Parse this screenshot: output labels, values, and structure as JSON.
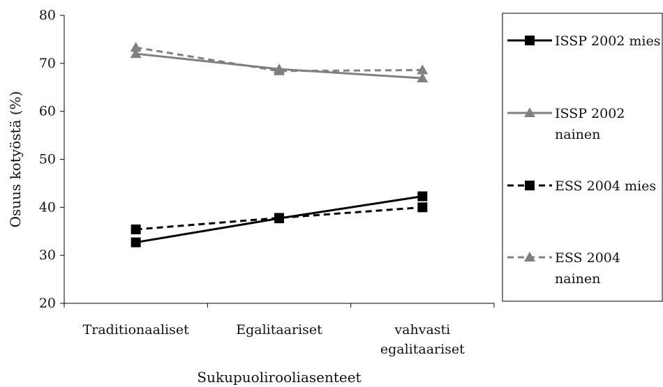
{
  "chart_data": {
    "type": "line",
    "xlabel": "Sukupuolirooliasenteet",
    "ylabel": "Osuus kotyöstä (%)",
    "categories": [
      [
        "Traditionaaliset"
      ],
      [
        "Egalitaariset"
      ],
      [
        "vahvasti",
        "egalitaariset"
      ]
    ],
    "ylim": [
      20,
      80
    ],
    "yticks": [
      20,
      30,
      40,
      50,
      60,
      70,
      80
    ],
    "grid": false,
    "legend_position": "right",
    "series": [
      {
        "name_lines": [
          "ISSP 2002 mies"
        ],
        "values": [
          32.7,
          37.7,
          42.3
        ],
        "color": "#000000",
        "dashed": false,
        "marker": "square"
      },
      {
        "name_lines": [
          "ISSP 2002",
          "nainen"
        ],
        "values": [
          72.0,
          68.8,
          66.9
        ],
        "color": "#808080",
        "dashed": false,
        "marker": "triangle"
      },
      {
        "name_lines": [
          "ESS 2004 mies"
        ],
        "values": [
          35.4,
          37.8,
          40.0
        ],
        "color": "#000000",
        "dashed": true,
        "marker": "square"
      },
      {
        "name_lines": [
          "ESS 2004",
          "nainen"
        ],
        "values": [
          73.3,
          68.4,
          68.6
        ],
        "color": "#808080",
        "dashed": true,
        "marker": "triangle"
      }
    ]
  }
}
